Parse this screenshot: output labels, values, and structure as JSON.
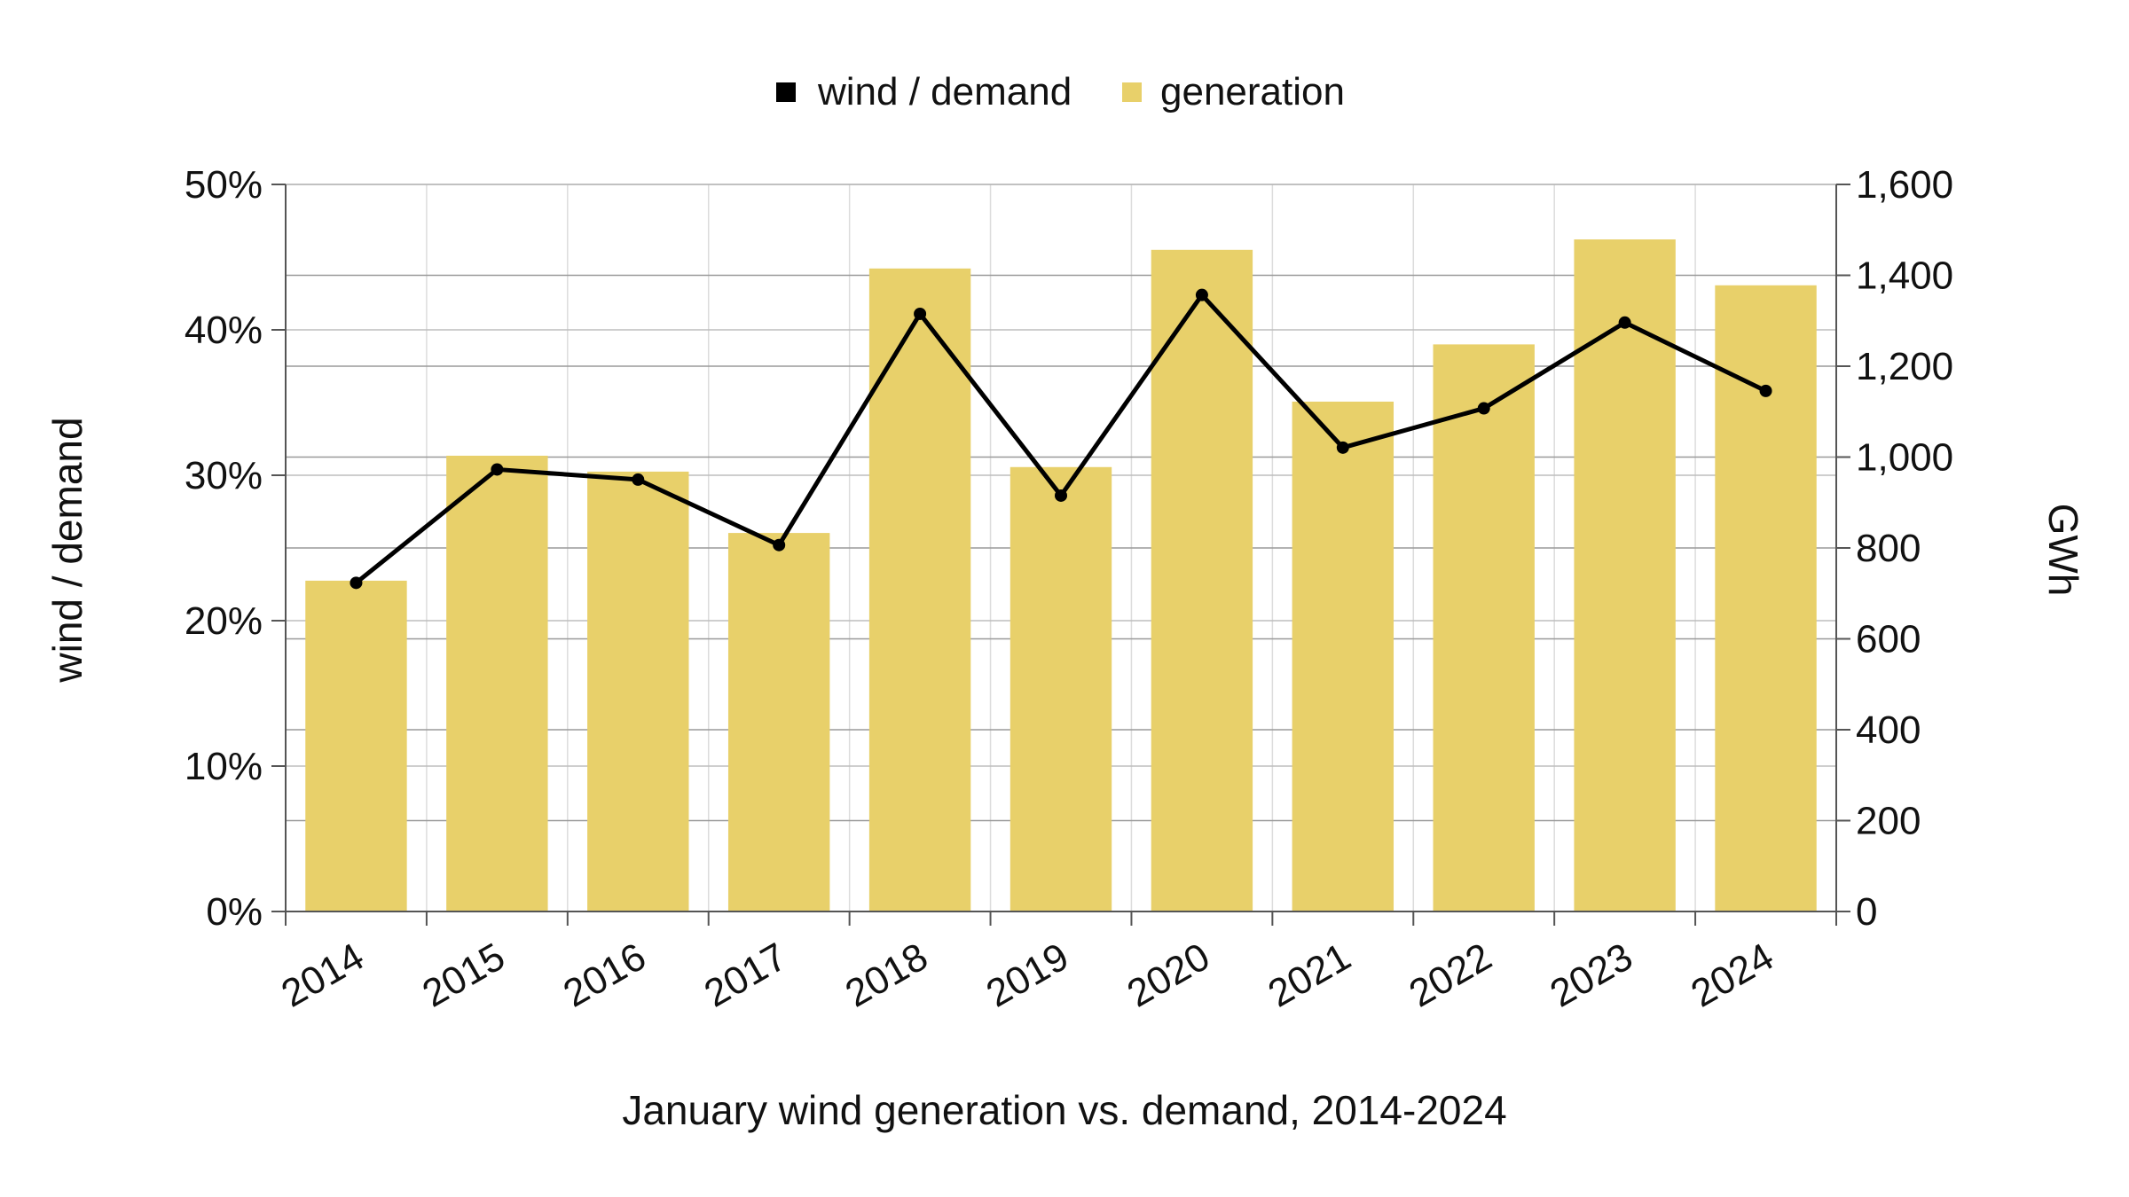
{
  "chart_data": {
    "type": "bar",
    "categories": [
      "2014",
      "2015",
      "2016",
      "2017",
      "2018",
      "2019",
      "2020",
      "2021",
      "2022",
      "2023",
      "2024"
    ],
    "series": [
      {
        "name": "generation",
        "type": "bar",
        "axis": "right",
        "color": "#e8d06a",
        "values": [
          728,
          1003,
          968,
          833,
          1415,
          978,
          1456,
          1122,
          1248,
          1479,
          1378
        ]
      },
      {
        "name": "wind / demand",
        "type": "line",
        "axis": "left",
        "color": "#000000",
        "values": [
          0.226,
          0.304,
          0.297,
          0.252,
          0.411,
          0.286,
          0.424,
          0.319,
          0.346,
          0.405,
          0.358
        ]
      }
    ],
    "title": "",
    "xlabel": "January wind generation vs. demand, 2014-2024",
    "ylabel": "wind / demand",
    "y2label": "GWh",
    "ylim": [
      0,
      0.5
    ],
    "y2lim": [
      0,
      1600
    ],
    "yticks": [
      "0%",
      "10%",
      "20%",
      "30%",
      "40%",
      "50%"
    ],
    "y2ticks": [
      "0",
      "200",
      "400",
      "600",
      "800",
      "1,000",
      "1,200",
      "1,400",
      "1,600"
    ],
    "legend_position": "top-center",
    "grid": true
  }
}
